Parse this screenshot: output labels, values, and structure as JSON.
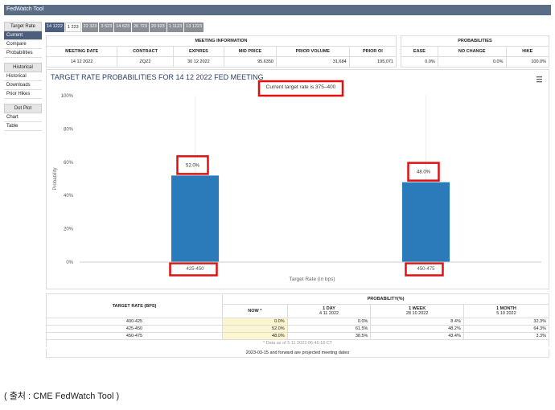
{
  "header": {
    "title": "FedWatch Tool"
  },
  "sidebar": [
    {
      "heading": "Target Rate",
      "items": [
        "Current",
        "Compare",
        "Probabilities"
      ]
    },
    {
      "heading": "Historical",
      "items": [
        "Historical",
        "Downloads",
        "Prior Hikes"
      ]
    },
    {
      "heading": "Dot Plot",
      "items": [
        "Chart",
        "Table"
      ]
    }
  ],
  "tabs": [
    "14 1222",
    "1 223",
    "22 323",
    "3 523",
    "14 623",
    "26 723",
    "20 923",
    "1 1123",
    "13 1223"
  ],
  "meeting_info": {
    "title": "MEETING INFORMATION",
    "columns": [
      "MEETING DATE",
      "CONTRACT",
      "EXPIRES",
      "MID PRICE",
      "PRIOR VOLUME",
      "PRIOR OI"
    ],
    "row": [
      "14 12 2022",
      "ZQZ2",
      "30 12 2022",
      "95.6350",
      "31,684",
      "195,071"
    ]
  },
  "probabilities": {
    "title": "PROBABILITIES",
    "columns": [
      "EASE",
      "NO CHANGE",
      "HIKE"
    ],
    "row": [
      "0.0%",
      "0.0%",
      "100.0%"
    ]
  },
  "chart_data": {
    "type": "bar",
    "title": "TARGET RATE PROBABILITIES FOR 14 12 2022 FED MEETING",
    "annotation": "Current target rate is 375–400",
    "y_label": "Probability",
    "x_label": "Target Rate (in bps)",
    "categories": [
      "425-450",
      "450-475"
    ],
    "values": [
      52.0,
      48.0
    ],
    "value_labels": [
      "52.0%",
      "48.0%"
    ],
    "color": "#2b7bba",
    "ylim": [
      0,
      100
    ],
    "yticks": [
      {
        "value": 0,
        "label": "0%"
      },
      {
        "value": 20,
        "label": "20%"
      },
      {
        "value": 40,
        "label": "40%"
      },
      {
        "value": 60,
        "label": "60%"
      },
      {
        "value": 80,
        "label": "80%"
      },
      {
        "value": 100,
        "label": "100%"
      }
    ]
  },
  "probability_table": {
    "row_header": "TARGET RATE (BPS)",
    "title": "PROBABILITY(%)",
    "columns": [
      {
        "label": "NOW *"
      },
      {
        "label": "1 DAY",
        "date": "4 11 2022"
      },
      {
        "label": "1 WEEK",
        "date": "28 10 2022"
      },
      {
        "label": "1 MONTH",
        "date": "5 10 2022"
      }
    ],
    "rows": [
      [
        "400-425",
        "0.0%",
        "0.0%",
        "8.4%",
        "32.3%"
      ],
      [
        "425-450",
        "52.0%",
        "61.5%",
        "48.2%",
        "64.3%"
      ],
      [
        "450-475",
        "48.0%",
        "38.5%",
        "43.4%",
        "3.3%"
      ]
    ],
    "footnote": "* Data as of 5 11 2022 06:46:18 CT",
    "note": "2023-03-15 and forward are projected meeting dates"
  },
  "caption": "( 출처 : CME FedWatch Tool )"
}
